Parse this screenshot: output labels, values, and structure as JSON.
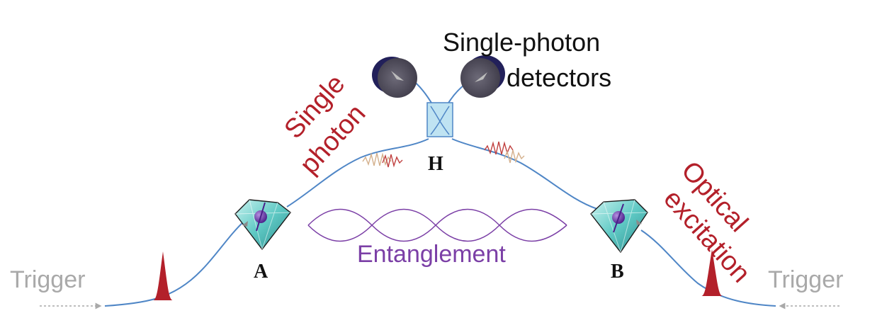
{
  "labels": {
    "detectors_line1": "Single-photon",
    "detectors_line2": "detectors",
    "single_photon_line1": "Single",
    "single_photon_line2": "photon",
    "optical_line1": "Optical",
    "optical_line2": "excitation",
    "beamsplitter": "H",
    "node_a": "A",
    "node_b": "B",
    "entanglement": "Entanglement",
    "trigger_left": "Trigger",
    "trigger_right": "Trigger"
  },
  "colors": {
    "fiber": "#4f86c6",
    "trigger": "#a9a9a9",
    "red": "#b3202a",
    "purple": "#7b3fa6",
    "detector": "#4d4a5a",
    "detector_shadow": "#22205a",
    "diamond": "#5fc9c4",
    "beamsplitter": "#bfe3f2",
    "text": "#111111"
  }
}
